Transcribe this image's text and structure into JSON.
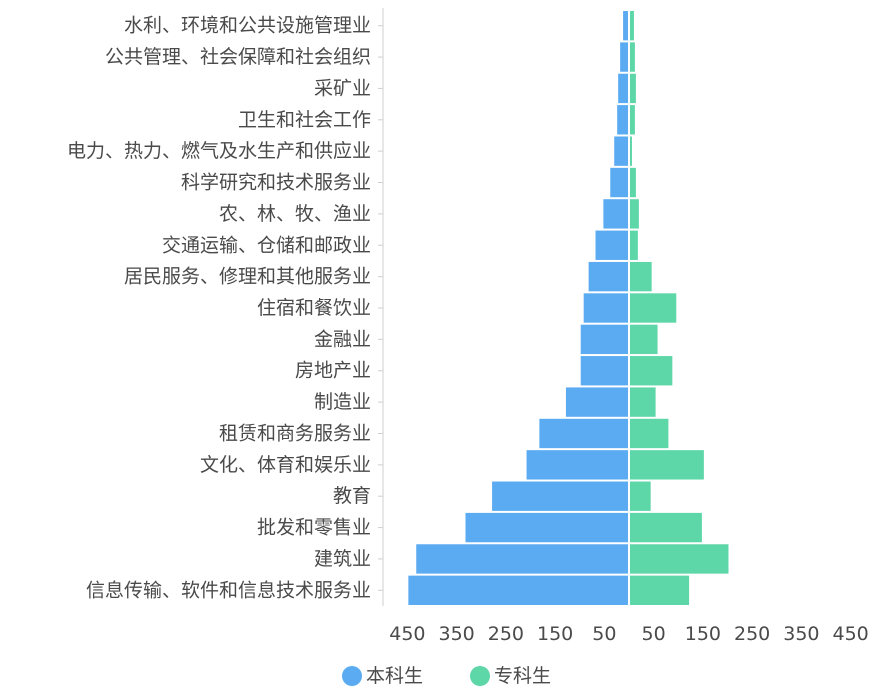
{
  "chart_data": {
    "type": "bar",
    "orientation": "horizontal",
    "layout": "diverging",
    "categories": [
      "水利、环境和公共设施管理业",
      "公共管理、社会保障和社会组织",
      "采矿业",
      "卫生和社会工作",
      "电力、热力、燃气及水生产和供应业",
      "科学研究和技术服务业",
      "农、林、牧、渔业",
      "交通运输、仓储和邮政业",
      "居民服务、修理和其他服务业",
      "住宿和餐饮业",
      "金融业",
      "房地产业",
      "制造业",
      "租赁和商务服务业",
      "文化、体育和娱乐业",
      "教育",
      "批发和零售业",
      "建筑业",
      "信息传输、软件和信息技术服务业"
    ],
    "series": [
      {
        "name": "本科生",
        "color": "#5aabf2",
        "side": "left",
        "values": [
          12,
          18,
          22,
          24,
          30,
          38,
          52,
          68,
          82,
          92,
          98,
          98,
          128,
          182,
          208,
          278,
          332,
          432,
          448
        ]
      },
      {
        "name": "专科生",
        "color": "#5dd6a8",
        "side": "right",
        "values": [
          10,
          12,
          14,
          12,
          6,
          14,
          20,
          18,
          46,
          96,
          58,
          88,
          54,
          80,
          152,
          44,
          148,
          202,
          122
        ]
      }
    ],
    "xticks": [
      "450",
      "350",
      "250",
      "150",
      "50",
      "50",
      "150",
      "250",
      "350",
      "450"
    ],
    "xlim": [
      -500,
      500
    ],
    "legend": {
      "position": "bottom-left",
      "items": [
        "本科生",
        "专科生"
      ]
    },
    "grid": false
  }
}
